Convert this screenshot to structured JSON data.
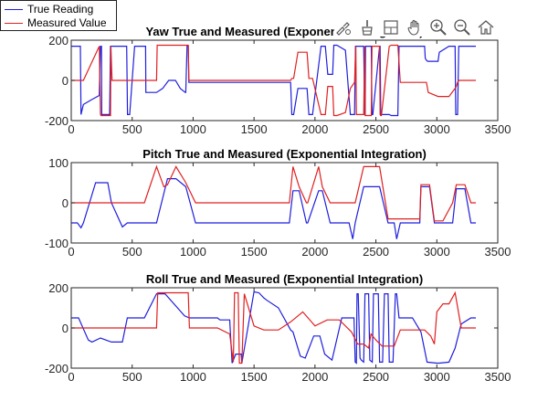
{
  "legend": {
    "items": [
      {
        "label": "True Reading",
        "color": "#1f1fdd"
      },
      {
        "label": "Measured Value",
        "color": "#e02020"
      }
    ]
  },
  "toolbar": {
    "icons": [
      "edit-figure-icon",
      "brush-icon",
      "datacursor-icon",
      "pan-hand-icon",
      "zoom-in-icon",
      "zoom-out-icon",
      "home-icon"
    ]
  },
  "chart_data": [
    {
      "type": "line",
      "title": "Yaw True and Measured (Exponential Integration)",
      "xlim": [
        0,
        3500
      ],
      "ylim": [
        -200,
        200
      ],
      "xticks": [
        0,
        500,
        1000,
        1500,
        2000,
        2500,
        3000,
        3500
      ],
      "yticks": [
        -200,
        0,
        200
      ],
      "grid": false,
      "series": [
        {
          "name": "True Reading",
          "color": "#1f1fdd",
          "x": [
            0,
            15,
            75,
            80,
            100,
            170,
            230,
            240,
            248,
            250,
            315,
            322,
            325,
            335,
            455,
            462,
            470,
            480,
            520,
            532,
            545,
            610,
            612,
            625,
            700,
            750,
            800,
            855,
            895,
            935,
            940,
            950,
            960,
            965,
            1800,
            1810,
            1825,
            1860,
            1935,
            1950,
            1980,
            2050,
            2085,
            2105,
            2145,
            2155,
            2180,
            2250,
            2290,
            2325,
            2332,
            2338,
            2345,
            2400,
            2408,
            2412,
            2415,
            2462,
            2468,
            2475,
            2530,
            2535,
            2540,
            2545,
            2610,
            2625,
            2680,
            2690,
            2700,
            2900,
            2905,
            2915,
            2925,
            3010,
            3020,
            3100,
            3150,
            3155,
            3170,
            3180,
            3320
          ],
          "y": [
            170,
            170,
            170,
            -170,
            -120,
            -95,
            -75,
            170,
            170,
            -170,
            -170,
            170,
            170,
            170,
            170,
            -170,
            -170,
            -170,
            170,
            170,
            170,
            170,
            -60,
            -60,
            -60,
            -40,
            0,
            0,
            -40,
            -60,
            -60,
            170,
            170,
            -10,
            -10,
            -170,
            -170,
            -40,
            -40,
            -170,
            -170,
            170,
            170,
            30,
            30,
            175,
            175,
            150,
            -170,
            -170,
            170,
            170,
            170,
            170,
            -170,
            -170,
            170,
            170,
            -170,
            -170,
            170,
            170,
            -170,
            -170,
            -170,
            -175,
            -175,
            170,
            170,
            170,
            110,
            100,
            95,
            95,
            140,
            170,
            170,
            -170,
            -170,
            170,
            170
          ]
        },
        {
          "name": "Measured Value",
          "color": "#e02020",
          "x": [
            0,
            75,
            100,
            230,
            240,
            245,
            250,
            315,
            322,
            325,
            335,
            455,
            462,
            470,
            520,
            545,
            700,
            705,
            710,
            960,
            965,
            1800,
            1810,
            1825,
            1860,
            1935,
            1950,
            1980,
            2050,
            2085,
            2105,
            2145,
            2155,
            2180,
            2250,
            2290,
            2325,
            2335,
            2340,
            2400,
            2408,
            2412,
            2415,
            2462,
            2468,
            2475,
            2530,
            2535,
            2540,
            2545,
            2610,
            2625,
            2680,
            2700,
            2900,
            2915,
            2930,
            3010,
            3030,
            3100,
            3150,
            3160,
            3170,
            3180,
            3320
          ],
          "y": [
            0,
            0,
            0,
            170,
            -170,
            -175,
            -175,
            -175,
            -175,
            170,
            0,
            0,
            0,
            0,
            0,
            0,
            0,
            175,
            175,
            175,
            0,
            0,
            10,
            10,
            140,
            140,
            10,
            10,
            -170,
            -170,
            -30,
            -30,
            -175,
            -175,
            -160,
            -40,
            -10,
            170,
            -170,
            -170,
            170,
            -175,
            -175,
            -175,
            170,
            170,
            170,
            -170,
            -175,
            -175,
            170,
            175,
            175,
            -10,
            -10,
            -10,
            -60,
            -80,
            -80,
            -80,
            -40,
            -30,
            -10,
            0,
            0
          ]
        }
      ]
    },
    {
      "type": "line",
      "title": "Pitch True and Measured (Exponential Integration)",
      "xlim": [
        0,
        3500
      ],
      "ylim": [
        -100,
        100
      ],
      "xticks": [
        0,
        500,
        1000,
        1500,
        2000,
        2500,
        3000,
        3500
      ],
      "yticks": [
        -100,
        0,
        100
      ],
      "grid": false,
      "series": [
        {
          "name": "True Reading",
          "color": "#1f1fdd",
          "x": [
            0,
            50,
            80,
            100,
            200,
            230,
            300,
            330,
            420,
            460,
            560,
            700,
            790,
            860,
            940,
            1020,
            1050,
            1700,
            1790,
            1820,
            1870,
            1930,
            1940,
            2030,
            2060,
            2125,
            2180,
            2280,
            2310,
            2330,
            2400,
            2460,
            2530,
            2600,
            2650,
            2670,
            2700,
            2800,
            2860,
            2870,
            2940,
            2980,
            3050,
            3130,
            3160,
            3230,
            3280,
            3320
          ],
          "y": [
            -50,
            -50,
            -62,
            -50,
            50,
            50,
            50,
            0,
            -60,
            -50,
            -50,
            -50,
            60,
            60,
            40,
            -50,
            -50,
            -50,
            -50,
            30,
            30,
            -50,
            -50,
            30,
            30,
            -50,
            -50,
            -50,
            -90,
            -50,
            40,
            40,
            40,
            -50,
            -50,
            -90,
            -50,
            -50,
            -50,
            40,
            40,
            -50,
            -50,
            -50,
            35,
            35,
            -50,
            -50
          ]
        },
        {
          "name": "Measured Value",
          "color": "#e02020",
          "x": [
            0,
            50,
            80,
            420,
            460,
            560,
            600,
            700,
            760,
            790,
            860,
            940,
            1020,
            1050,
            1700,
            1790,
            1820,
            1870,
            1930,
            1940,
            2030,
            2060,
            2125,
            2180,
            2280,
            2310,
            2330,
            2400,
            2460,
            2530,
            2600,
            2650,
            2670,
            2700,
            2800,
            2860,
            2870,
            2940,
            2980,
            3050,
            3130,
            3160,
            3230,
            3280,
            3320
          ],
          "y": [
            0,
            0,
            0,
            0,
            0,
            0,
            0,
            90,
            40,
            45,
            90,
            50,
            0,
            0,
            0,
            0,
            90,
            40,
            0,
            0,
            90,
            40,
            0,
            0,
            0,
            0,
            0,
            90,
            90,
            90,
            -40,
            -40,
            -40,
            -40,
            -40,
            -40,
            45,
            45,
            -45,
            -45,
            0,
            45,
            45,
            0,
            0
          ]
        }
      ]
    },
    {
      "type": "line",
      "title": "Roll True and Measured (Exponential Integration)",
      "xlim": [
        0,
        3500
      ],
      "ylim": [
        -200,
        200
      ],
      "xticks": [
        0,
        500,
        1000,
        1500,
        2000,
        2500,
        3000,
        3500
      ],
      "yticks": [
        -200,
        0,
        200
      ],
      "grid": false,
      "series": [
        {
          "name": "True Reading",
          "color": "#1f1fdd",
          "x": [
            0,
            60,
            140,
            170,
            240,
            330,
            420,
            460,
            600,
            700,
            770,
            930,
            970,
            1200,
            1220,
            1300,
            1320,
            1350,
            1360,
            1380,
            1395,
            1400,
            1500,
            1540,
            1580,
            1600,
            1700,
            1800,
            1820,
            1850,
            1880,
            1920,
            1990,
            2040,
            2080,
            2140,
            2220,
            2320,
            2330,
            2340,
            2345,
            2355,
            2370,
            2380,
            2400,
            2410,
            2440,
            2450,
            2470,
            2480,
            2520,
            2530,
            2555,
            2570,
            2600,
            2610,
            2640,
            2660,
            2670,
            2690,
            2800,
            2870,
            2920,
            3000,
            3020,
            3100,
            3150,
            3200,
            3280,
            3320
          ],
          "y": [
            50,
            50,
            -60,
            -70,
            -50,
            -70,
            -70,
            50,
            50,
            170,
            170,
            60,
            50,
            50,
            40,
            40,
            -175,
            -130,
            -130,
            -130,
            -130,
            -175,
            180,
            175,
            150,
            140,
            100,
            -10,
            -20,
            -80,
            -140,
            -150,
            -40,
            -40,
            -130,
            -160,
            50,
            50,
            -170,
            -175,
            170,
            170,
            -150,
            -160,
            -170,
            170,
            170,
            -160,
            -170,
            170,
            170,
            -170,
            -170,
            170,
            170,
            -170,
            -170,
            170,
            170,
            50,
            50,
            -20,
            -170,
            -175,
            -175,
            -170,
            -100,
            20,
            50,
            50
          ]
        },
        {
          "name": "Measured Value",
          "color": "#e02020",
          "x": [
            0,
            600,
            700,
            710,
            960,
            970,
            1200,
            1300,
            1330,
            1340,
            1370,
            1380,
            1400,
            1420,
            1500,
            1580,
            1700,
            1800,
            1900,
            2000,
            2100,
            2200,
            2300,
            2350,
            2400,
            2440,
            2460,
            2500,
            2550,
            2600,
            2650,
            2700,
            2900,
            2950,
            2980,
            3000,
            3050,
            3100,
            3150,
            3200,
            3320
          ],
          "y": [
            0,
            0,
            0,
            175,
            175,
            0,
            0,
            -30,
            -170,
            175,
            175,
            -175,
            -175,
            170,
            10,
            -10,
            -10,
            30,
            80,
            10,
            40,
            40,
            -20,
            -80,
            -80,
            -100,
            -30,
            -60,
            -90,
            -90,
            -90,
            -10,
            -10,
            -40,
            -80,
            80,
            120,
            120,
            175,
            0,
            0
          ]
        }
      ]
    }
  ]
}
